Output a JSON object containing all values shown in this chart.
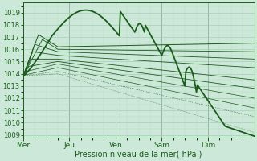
{
  "xlabel": "Pression niveau de la mer( hPa )",
  "bg_color": "#cce8d8",
  "grid_color_major": "#aaccbb",
  "grid_color_minor": "#bbddc8",
  "line_color": "#1a5c1a",
  "ylim": [
    1008.8,
    1019.8
  ],
  "yticks": [
    1009,
    1010,
    1011,
    1012,
    1013,
    1014,
    1015,
    1016,
    1017,
    1018,
    1019
  ],
  "x_days": [
    "Mer",
    "Jeu",
    "Ven",
    "Sam",
    "Dim"
  ],
  "x_day_positions": [
    0,
    24,
    48,
    72,
    96
  ],
  "xlim": [
    0,
    120
  ]
}
